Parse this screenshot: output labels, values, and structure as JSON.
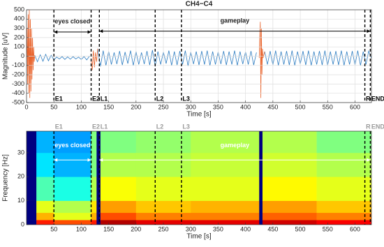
{
  "chart_data": [
    {
      "type": "line",
      "title": "CH4−C4",
      "x_label": "Time [s]",
      "y_label": "Magnitude [uV]",
      "xlim": [
        0,
        630
      ],
      "ylim": [
        -500,
        500
      ],
      "xticks": [
        0,
        50,
        100,
        150,
        200,
        250,
        300,
        350,
        400,
        450,
        500,
        550,
        600
      ],
      "yticks": [
        -500,
        -400,
        -300,
        -200,
        -100,
        0,
        100,
        200,
        300,
        400,
        500
      ],
      "grid": true,
      "event_color": "#000000",
      "event_label_color": "#000000",
      "arrow_color": "#000000",
      "series": [
        {
          "color": "#2b7bc0",
          "x": [
            15,
            20,
            25,
            30,
            35,
            40,
            45,
            50,
            55,
            60,
            65,
            70,
            75,
            80,
            85,
            90,
            95,
            100,
            105,
            110,
            115,
            120,
            130,
            135,
            140,
            145,
            150,
            155,
            160,
            165,
            170,
            175,
            180,
            185,
            190,
            195,
            200,
            205,
            210,
            215,
            220,
            225,
            230,
            235,
            240,
            245,
            250,
            255,
            260,
            265,
            270,
            275,
            280,
            285,
            290,
            295,
            300,
            305,
            310,
            315,
            320,
            325,
            330,
            335,
            340,
            345,
            350,
            355,
            360,
            365,
            370,
            375,
            380,
            385,
            390,
            395,
            400,
            405,
            410,
            415,
            420,
            425,
            435,
            440,
            445,
            450,
            455,
            460,
            465,
            470,
            475,
            480,
            485,
            490,
            495,
            500,
            505,
            510,
            515,
            520,
            525,
            530,
            535,
            540,
            545,
            550,
            555,
            560,
            565,
            570,
            575,
            580,
            585,
            590,
            595,
            600,
            605,
            610,
            615,
            620,
            625,
            630
          ],
          "values": [
            10,
            -60,
            15,
            -55,
            20,
            -50,
            10,
            -40,
            -10,
            -30,
            -5,
            -35,
            -8,
            -32,
            -6,
            -30,
            -10,
            -35,
            -5,
            -40,
            0,
            null,
            80,
            -110,
            60,
            -100,
            50,
            -90,
            40,
            -85,
            55,
            -95,
            45,
            -80,
            60,
            -100,
            50,
            -90,
            40,
            -85,
            55,
            -95,
            65,
            -110,
            50,
            -90,
            45,
            -80,
            60,
            -100,
            50,
            -95,
            55,
            -90,
            60,
            -105,
            45,
            -85,
            50,
            -95,
            55,
            -90,
            60,
            -100,
            50,
            -90,
            45,
            -85,
            55,
            -95,
            50,
            -90,
            60,
            -100,
            50,
            -85,
            45,
            -90,
            55,
            -95,
            40,
            null,
            50,
            -90,
            55,
            -95,
            60,
            -100,
            50,
            -90,
            55,
            -95,
            60,
            -100,
            50,
            -85,
            55,
            -95,
            60,
            -100,
            50,
            -90,
            55,
            -95,
            60,
            -100,
            50,
            -90,
            55,
            -95,
            60,
            -100,
            50,
            -90,
            55,
            -95,
            60,
            -100,
            50,
            -90,
            55,
            -20
          ]
        },
        {
          "color": "#e8622a",
          "x": [
            0,
            1,
            2,
            3,
            4,
            5,
            6,
            7,
            8,
            9,
            10,
            11,
            12,
            13,
            14,
            15,
            116,
            118,
            120,
            122,
            124,
            126,
            128,
            130,
            423,
            425,
            427,
            428,
            429,
            430,
            431,
            432,
            435
          ],
          "values": [
            -100,
            300,
            -300,
            450,
            -400,
            500,
            -450,
            400,
            -380,
            300,
            -250,
            200,
            -150,
            100,
            -60,
            10,
            null,
            -30,
            -150,
            60,
            -120,
            40,
            -60,
            80,
            null,
            -20,
            370,
            -450,
            300,
            -200,
            80,
            -20,
            50
          ]
        }
      ],
      "events": [
        {
          "label": "E1",
          "x": 50
        },
        {
          "label": "E2",
          "x": 118
        },
        {
          "label": "L1",
          "x": 133
        },
        {
          "label": "L2",
          "x": 235
        },
        {
          "label": "L3",
          "x": 283
        },
        {
          "label": "R",
          "x": 618
        },
        {
          "label": "END",
          "x": 628
        }
      ],
      "annotations": [
        {
          "text": "eyes closed",
          "x": [
            50,
            118
          ],
          "y": 260,
          "text_y": 370
        },
        {
          "text": "gameplay",
          "x": [
            133,
            628
          ],
          "y": 270,
          "text_y": 380
        }
      ]
    },
    {
      "type": "heatmap",
      "x_label": "Time [s]",
      "y_label": "Frequency [Hz]",
      "xlim": [
        0,
        630
      ],
      "ylim": [
        0,
        39
      ],
      "xticks": [
        50,
        100,
        150,
        200,
        250,
        300,
        350,
        400,
        450,
        500,
        550,
        600
      ],
      "yticks": [
        0,
        10,
        20,
        30
      ],
      "grid": false,
      "colormap": "jet",
      "event_color": "#000000",
      "event_label_color": "#9a9a9a",
      "arrow_color": "#ffffff",
      "x_edges": [
        0,
        18,
        50,
        118,
        128,
        135,
        200,
        300,
        425,
        431,
        530,
        630
      ],
      "y_edges": [
        0,
        2,
        5,
        10,
        20,
        30,
        39
      ],
      "values": [
        [
          0,
          0,
          0,
          0,
          0,
          0
        ],
        [
          0.85,
          0.7,
          0.6,
          0.45,
          0.35,
          0.3
        ],
        [
          0.8,
          0.6,
          0.55,
          0.4,
          0.3,
          0.28
        ],
        [
          0.85,
          0.7,
          0.65,
          0.55,
          0.5,
          0.5
        ],
        [
          0,
          0,
          0,
          0,
          0,
          0
        ],
        [
          0.95,
          0.8,
          0.72,
          0.62,
          0.55,
          0.5
        ],
        [
          0.9,
          0.75,
          0.68,
          0.6,
          0.55,
          0.52
        ],
        [
          0.9,
          0.75,
          0.7,
          0.6,
          0.57,
          0.55
        ],
        [
          0,
          0,
          0,
          0,
          0,
          0
        ],
        [
          0.92,
          0.78,
          0.72,
          0.63,
          0.58,
          0.55
        ],
        [
          0.88,
          0.75,
          0.68,
          0.6,
          0.55,
          0.5
        ]
      ],
      "events": [
        {
          "label": "E1",
          "x": 50
        },
        {
          "label": "E2",
          "x": 118
        },
        {
          "label": "L1",
          "x": 133
        },
        {
          "label": "L2",
          "x": 235
        },
        {
          "label": "L3",
          "x": 283
        },
        {
          "label": "R",
          "x": 618
        },
        {
          "label": "END",
          "x": 628
        }
      ],
      "annotations": [
        {
          "text": "eyes closed",
          "x": [
            50,
            118
          ],
          "y": 27,
          "text_y": 33
        },
        {
          "text": "gameplay",
          "x": [
            133,
            628
          ],
          "y": 27,
          "text_y": 33
        }
      ]
    }
  ]
}
